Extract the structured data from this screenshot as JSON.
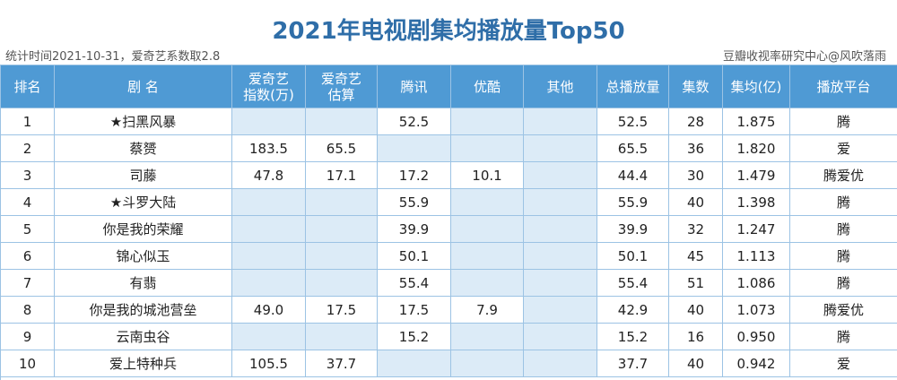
{
  "header": {
    "title": "2021年电视剧集均播放量Top50",
    "note_left": "统计时间2021-10-31，爱奇艺系数取2.8",
    "note_right": "豆瓣收视率研究中心@风吹落雨"
  },
  "table": {
    "columns": [
      [
        "排名"
      ],
      [
        "剧 名"
      ],
      [
        "爱奇艺",
        "指数(万)"
      ],
      [
        "爱奇艺",
        "估算"
      ],
      [
        "腾讯"
      ],
      [
        "优酷"
      ],
      [
        "其他"
      ],
      [
        "总播放量"
      ],
      [
        "集数"
      ],
      [
        "集均(亿)"
      ],
      [
        "播放平台"
      ]
    ],
    "rows": [
      [
        "1",
        "★扫黑风暴",
        null,
        null,
        "52.5",
        null,
        null,
        "52.5",
        "28",
        "1.875",
        "腾"
      ],
      [
        "2",
        "蔡赟",
        "183.5",
        "65.5",
        null,
        null,
        null,
        "65.5",
        "36",
        "1.820",
        "爱"
      ],
      [
        "3",
        "司藤",
        "47.8",
        "17.1",
        "17.2",
        "10.1",
        null,
        "44.4",
        "30",
        "1.479",
        "腾爱优"
      ],
      [
        "4",
        "★斗罗大陆",
        null,
        null,
        "55.9",
        null,
        null,
        "55.9",
        "40",
        "1.398",
        "腾"
      ],
      [
        "5",
        "你是我的荣耀",
        null,
        null,
        "39.9",
        null,
        null,
        "39.9",
        "32",
        "1.247",
        "腾"
      ],
      [
        "6",
        "锦心似玉",
        null,
        null,
        "50.1",
        null,
        null,
        "50.1",
        "45",
        "1.113",
        "腾"
      ],
      [
        "7",
        "有翡",
        null,
        null,
        "55.4",
        null,
        null,
        "55.4",
        "51",
        "1.086",
        "腾"
      ],
      [
        "8",
        "你是我的城池营垒",
        "49.0",
        "17.5",
        "17.5",
        "7.9",
        null,
        "42.9",
        "40",
        "1.073",
        "腾爱优"
      ],
      [
        "9",
        "云南虫谷",
        null,
        null,
        "15.2",
        null,
        null,
        "15.2",
        "16",
        "0.950",
        "腾"
      ],
      [
        "10",
        "爱上特种兵",
        "105.5",
        "37.7",
        null,
        null,
        null,
        "37.7",
        "40",
        "0.942",
        "爱"
      ]
    ]
  }
}
